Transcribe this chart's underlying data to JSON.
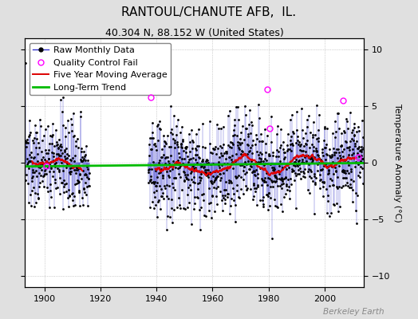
{
  "title": "RANTOUL/CHANUTE AFB,  IL.",
  "subtitle": "40.304 N, 88.152 W (United States)",
  "ylabel": "Temperature Anomaly (°C)",
  "watermark": "Berkeley Earth",
  "xlim": [
    1893,
    2014
  ],
  "ylim": [
    -11,
    11
  ],
  "yticks": [
    -10,
    -5,
    0,
    5,
    10
  ],
  "xticks": [
    1900,
    1920,
    1940,
    1960,
    1980,
    2000
  ],
  "background_color": "#e0e0e0",
  "plot_bg_color": "#ffffff",
  "line_color": "#3333cc",
  "dot_color": "#000000",
  "moving_avg_color": "#dd0000",
  "trend_color": "#00bb00",
  "qc_color": "#ff00ff",
  "title_fontsize": 11,
  "tick_fontsize": 8,
  "ylabel_fontsize": 8,
  "legend_fontsize": 8,
  "watermark_fontsize": 7.5
}
